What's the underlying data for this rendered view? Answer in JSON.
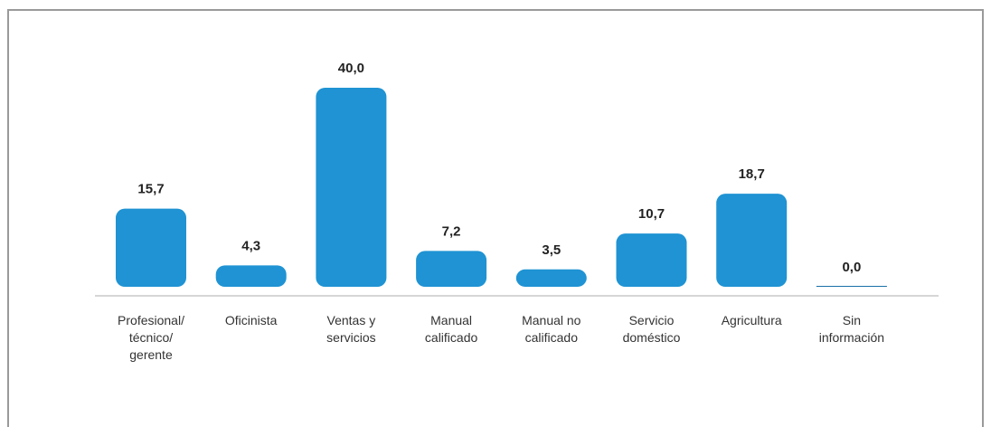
{
  "chart_data": {
    "type": "bar",
    "categories": [
      "Profesional/ técnico/ gerente",
      "Oficinista",
      "Ventas y servicios",
      "Manual calificado",
      "Manual no calificado",
      "Servicio doméstico",
      "Agricultura",
      "Sin información"
    ],
    "values": [
      15.7,
      4.3,
      40.0,
      7.2,
      3.5,
      10.7,
      18.7,
      0.0
    ],
    "value_labels": [
      "15,7",
      "4,3",
      "40,0",
      "7,2",
      "3,5",
      "10,7",
      "18,7",
      "0,0"
    ],
    "color": "#1f93d3"
  }
}
